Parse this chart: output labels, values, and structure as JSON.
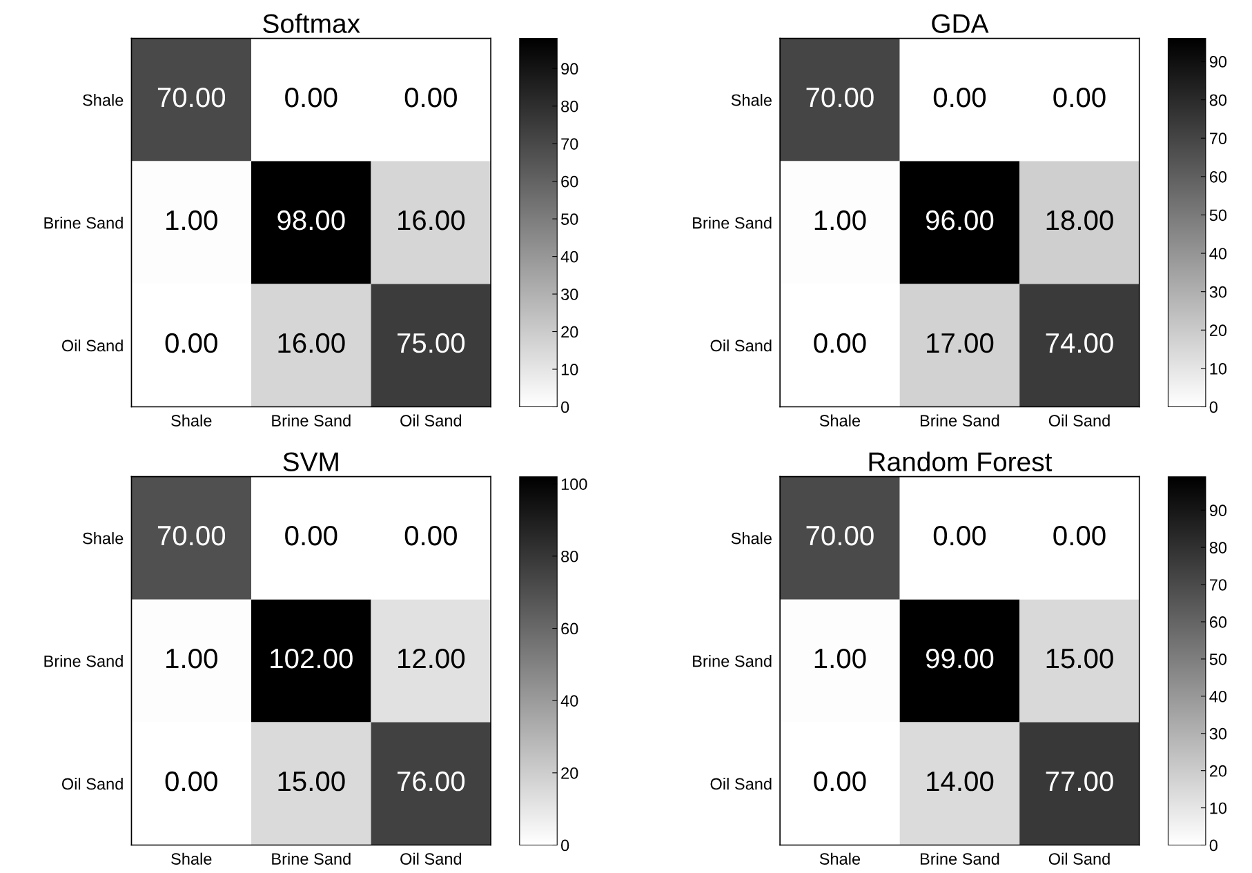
{
  "chart_data": [
    {
      "type": "heatmap",
      "title": "Softmax",
      "categories": [
        "Shale",
        "Brine Sand",
        "Oil Sand"
      ],
      "y_categories": [
        "Shale",
        "Brine Sand",
        "Oil Sand"
      ],
      "cells": [
        [
          70,
          0,
          0
        ],
        [
          1,
          98,
          16
        ],
        [
          0,
          16,
          75
        ]
      ],
      "cell_labels": [
        [
          "70.00",
          "0.00",
          "0.00"
        ],
        [
          "1.00",
          "98.00",
          "16.00"
        ],
        [
          "0.00",
          "16.00",
          "75.00"
        ]
      ],
      "clim": [
        0,
        98
      ],
      "cticks": [
        0,
        10,
        20,
        30,
        40,
        50,
        60,
        70,
        80,
        90
      ]
    },
    {
      "type": "heatmap",
      "title": "GDA",
      "categories": [
        "Shale",
        "Brine Sand",
        "Oil Sand"
      ],
      "y_categories": [
        "Shale",
        "Brine Sand",
        "Oil Sand"
      ],
      "cells": [
        [
          70,
          0,
          0
        ],
        [
          1,
          96,
          18
        ],
        [
          0,
          17,
          74
        ]
      ],
      "cell_labels": [
        [
          "70.00",
          "0.00",
          "0.00"
        ],
        [
          "1.00",
          "96.00",
          "18.00"
        ],
        [
          "0.00",
          "17.00",
          "74.00"
        ]
      ],
      "clim": [
        0,
        96
      ],
      "cticks": [
        0,
        10,
        20,
        30,
        40,
        50,
        60,
        70,
        80,
        90
      ]
    },
    {
      "type": "heatmap",
      "title": "SVM",
      "categories": [
        "Shale",
        "Brine Sand",
        "Oil Sand"
      ],
      "y_categories": [
        "Shale",
        "Brine Sand",
        "Oil Sand"
      ],
      "cells": [
        [
          70,
          0,
          0
        ],
        [
          1,
          102,
          12
        ],
        [
          0,
          15,
          76
        ]
      ],
      "cell_labels": [
        [
          "70.00",
          "0.00",
          "0.00"
        ],
        [
          "1.00",
          "102.00",
          "12.00"
        ],
        [
          "0.00",
          "15.00",
          "76.00"
        ]
      ],
      "clim": [
        0,
        102
      ],
      "cticks": [
        0,
        20,
        40,
        60,
        80,
        100
      ]
    },
    {
      "type": "heatmap",
      "title": "Random Forest",
      "categories": [
        "Shale",
        "Brine Sand",
        "Oil Sand"
      ],
      "y_categories": [
        "Shale",
        "Brine Sand",
        "Oil Sand"
      ],
      "cells": [
        [
          70,
          0,
          0
        ],
        [
          1,
          99,
          15
        ],
        [
          0,
          14,
          77
        ]
      ],
      "cell_labels": [
        [
          "70.00",
          "0.00",
          "0.00"
        ],
        [
          "1.00",
          "99.00",
          "15.00"
        ],
        [
          "0.00",
          "14.00",
          "77.00"
        ]
      ],
      "clim": [
        0,
        99
      ],
      "cticks": [
        0,
        10,
        20,
        30,
        40,
        50,
        60,
        70,
        80,
        90
      ]
    }
  ]
}
